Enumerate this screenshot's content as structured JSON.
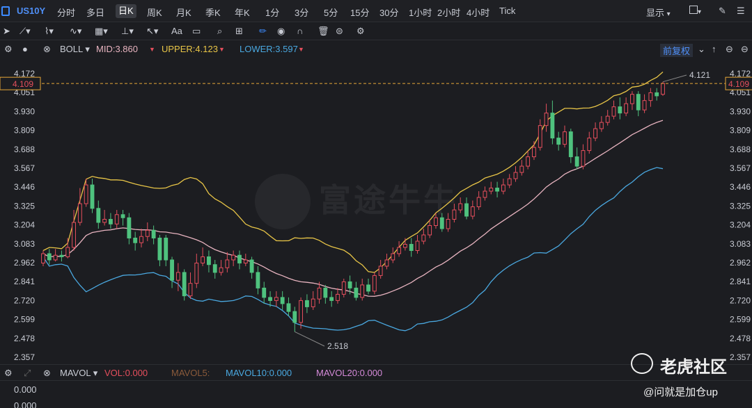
{
  "header": {
    "symbol": "US10Y",
    "timeframes": [
      "分时",
      "多日",
      "日K",
      "周K",
      "月K",
      "季K",
      "年K",
      "1分",
      "3分",
      "5分",
      "15分",
      "30分",
      "1小时",
      "2小时",
      "4小时",
      "Tick"
    ],
    "active_timeframe": "日K",
    "display_label": "显示"
  },
  "toolbar": {
    "text_tool": "Aa"
  },
  "indicator": {
    "name": "BOLL",
    "mid_label": "MID:3.860",
    "upper_label": "UPPER:4.123",
    "lower_label": "LOWER:3.597",
    "adjust_label": "前复权"
  },
  "volume": {
    "name": "MAVOL",
    "vol_label": "VOL:0.000",
    "ma5_label": "MAVOL5:",
    "ma10_label": "MAVOL10:0.000",
    "ma20_label": "MAVOL20:0.000",
    "ticks": [
      "0.000",
      "0.000"
    ]
  },
  "watermark": {
    "text": "富途牛牛"
  },
  "overlay": {
    "brand": "老虎社区",
    "user": "@问就是加仓up"
  },
  "colors": {
    "up": "#e64f5d",
    "down": "#4fc27e",
    "upper": "#e8c547",
    "mid": "#e8b4c0",
    "lower": "#4aa8e0",
    "accent": "#3d8bff"
  },
  "chart_data": {
    "type": "candlestick",
    "y_ticks": [
      "4.172",
      "4.051",
      "3.930",
      "3.809",
      "3.688",
      "3.567",
      "3.446",
      "3.325",
      "3.204",
      "3.083",
      "2.962",
      "2.841",
      "2.720",
      "2.599",
      "2.478",
      "2.357"
    ],
    "ylim": [
      2.357,
      4.172
    ],
    "current_price": "4.109",
    "annotations": {
      "high": "4.121",
      "low": "2.518"
    },
    "candles": [
      [
        2.96,
        3.02,
        3.04,
        2.94
      ],
      [
        3.02,
        2.98,
        3.05,
        2.95
      ],
      [
        2.98,
        3.01,
        3.05,
        2.97
      ],
      [
        3.01,
        3.0,
        3.04,
        2.97
      ],
      [
        3.0,
        3.06,
        3.12,
        2.99
      ],
      [
        3.06,
        3.22,
        3.3,
        3.04
      ],
      [
        3.22,
        3.34,
        3.44,
        3.2
      ],
      [
        3.34,
        3.46,
        3.5,
        3.32
      ],
      [
        3.46,
        3.31,
        3.5,
        3.28
      ],
      [
        3.31,
        3.22,
        3.36,
        3.18
      ],
      [
        3.22,
        3.24,
        3.3,
        3.2
      ],
      [
        3.24,
        3.21,
        3.28,
        3.18
      ],
      [
        3.21,
        3.27,
        3.3,
        3.18
      ],
      [
        3.27,
        3.25,
        3.3,
        3.2
      ],
      [
        3.25,
        3.12,
        3.28,
        3.08
      ],
      [
        3.12,
        3.09,
        3.16,
        3.04
      ],
      [
        3.09,
        3.13,
        3.18,
        3.06
      ],
      [
        3.13,
        3.17,
        3.22,
        3.1
      ],
      [
        3.17,
        3.12,
        3.2,
        3.08
      ],
      [
        3.12,
        2.98,
        3.14,
        2.94
      ],
      [
        3.12,
        2.98,
        3.14,
        2.94
      ],
      [
        2.98,
        2.85,
        3.0,
        2.8
      ],
      [
        2.85,
        2.9,
        2.96,
        2.78
      ],
      [
        2.9,
        2.75,
        2.92,
        2.72
      ],
      [
        2.75,
        2.83,
        2.9,
        2.73
      ],
      [
        2.83,
        2.96,
        3.02,
        2.8
      ],
      [
        2.96,
        3.0,
        3.06,
        2.94
      ],
      [
        3.0,
        2.95,
        3.04,
        2.9
      ],
      [
        2.95,
        2.9,
        2.98,
        2.86
      ],
      [
        2.9,
        2.93,
        2.98,
        2.88
      ],
      [
        2.93,
        2.98,
        3.03,
        2.9
      ],
      [
        2.98,
        3.01,
        3.04,
        2.94
      ],
      [
        3.01,
        2.96,
        3.04,
        2.92
      ],
      [
        2.96,
        2.98,
        3.02,
        2.94
      ],
      [
        2.98,
        2.9,
        3.0,
        2.86
      ],
      [
        2.9,
        2.8,
        2.94,
        2.76
      ],
      [
        2.8,
        2.74,
        2.84,
        2.7
      ],
      [
        2.74,
        2.72,
        2.78,
        2.68
      ],
      [
        2.72,
        2.74,
        2.78,
        2.68
      ],
      [
        2.74,
        2.7,
        2.78,
        2.66
      ],
      [
        2.7,
        2.65,
        2.74,
        2.62
      ],
      [
        2.65,
        2.58,
        2.68,
        2.52
      ],
      [
        2.58,
        2.72,
        2.74,
        2.54
      ],
      [
        2.72,
        2.68,
        2.76,
        2.64
      ],
      [
        2.68,
        2.73,
        2.78,
        2.66
      ],
      [
        2.73,
        2.8,
        2.84,
        2.7
      ],
      [
        2.8,
        2.74,
        2.82,
        2.7
      ],
      [
        2.74,
        2.72,
        2.78,
        2.68
      ],
      [
        2.72,
        2.76,
        2.8,
        2.7
      ],
      [
        2.76,
        2.84,
        2.86,
        2.74
      ],
      [
        2.84,
        2.8,
        2.88,
        2.76
      ],
      [
        2.8,
        2.74,
        2.84,
        2.72
      ],
      [
        2.74,
        2.82,
        2.86,
        2.72
      ],
      [
        2.82,
        2.78,
        2.86,
        2.76
      ],
      [
        2.78,
        2.88,
        2.9,
        2.76
      ],
      [
        2.88,
        2.94,
        2.98,
        2.86
      ],
      [
        2.94,
        2.98,
        3.02,
        2.92
      ],
      [
        2.98,
        3.02,
        3.06,
        2.96
      ],
      [
        3.02,
        3.06,
        3.1,
        3.0
      ],
      [
        3.06,
        3.08,
        3.12,
        3.04
      ],
      [
        3.08,
        3.04,
        3.12,
        3.0
      ],
      [
        3.04,
        3.1,
        3.14,
        3.02
      ],
      [
        3.1,
        3.14,
        3.18,
        3.08
      ],
      [
        3.14,
        3.2,
        3.24,
        3.12
      ],
      [
        3.2,
        3.25,
        3.28,
        3.18
      ],
      [
        3.25,
        3.18,
        3.28,
        3.16
      ],
      [
        3.18,
        3.24,
        3.28,
        3.16
      ],
      [
        3.24,
        3.3,
        3.34,
        3.22
      ],
      [
        3.3,
        3.34,
        3.38,
        3.28
      ],
      [
        3.34,
        3.26,
        3.38,
        3.24
      ],
      [
        3.26,
        3.32,
        3.36,
        3.24
      ],
      [
        3.32,
        3.38,
        3.42,
        3.3
      ],
      [
        3.38,
        3.42,
        3.45,
        3.36
      ],
      [
        3.42,
        3.44,
        3.48,
        3.4
      ],
      [
        3.44,
        3.42,
        3.48,
        3.38
      ],
      [
        3.42,
        3.46,
        3.5,
        3.4
      ],
      [
        3.46,
        3.5,
        3.53,
        3.44
      ],
      [
        3.5,
        3.54,
        3.58,
        3.48
      ],
      [
        3.54,
        3.58,
        3.62,
        3.52
      ],
      [
        3.58,
        3.64,
        3.68,
        3.56
      ],
      [
        3.64,
        3.7,
        3.74,
        3.62
      ],
      [
        3.7,
        3.84,
        3.88,
        3.68
      ],
      [
        3.84,
        3.92,
        3.98,
        3.8
      ],
      [
        3.92,
        3.76,
        4.0,
        3.72
      ],
      [
        3.76,
        3.72,
        3.8,
        3.68
      ],
      [
        3.72,
        3.8,
        3.84,
        3.7
      ],
      [
        3.8,
        3.64,
        3.82,
        3.6
      ],
      [
        3.64,
        3.58,
        3.7,
        3.56
      ],
      [
        3.58,
        3.68,
        3.72,
        3.56
      ],
      [
        3.68,
        3.76,
        3.8,
        3.66
      ],
      [
        3.76,
        3.82,
        3.86,
        3.74
      ],
      [
        3.82,
        3.86,
        3.9,
        3.8
      ],
      [
        3.86,
        3.9,
        3.94,
        3.84
      ],
      [
        3.9,
        3.96,
        4.0,
        3.88
      ],
      [
        3.96,
        3.92,
        4.02,
        3.88
      ],
      [
        3.92,
        3.98,
        4.02,
        3.9
      ],
      [
        3.98,
        4.04,
        4.06,
        3.94
      ],
      [
        4.04,
        3.94,
        4.06,
        3.9
      ],
      [
        3.94,
        4.0,
        4.04,
        3.92
      ],
      [
        4.0,
        4.05,
        4.08,
        3.96
      ],
      [
        4.05,
        4.03,
        4.08,
        4.0
      ],
      [
        4.04,
        4.11,
        4.12,
        4.03
      ]
    ]
  }
}
